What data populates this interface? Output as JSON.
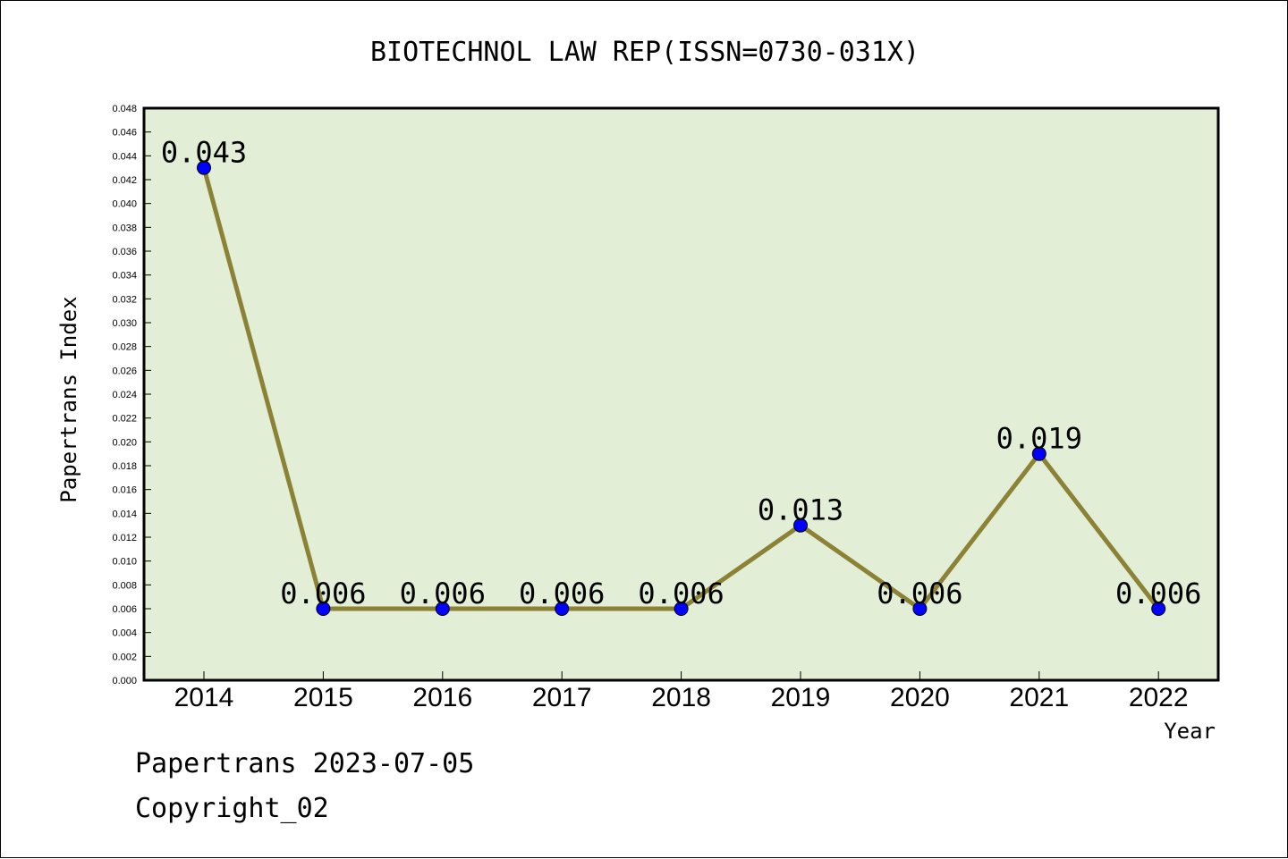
{
  "chart_data": {
    "type": "line",
    "title": "BIOTECHNOL LAW REP(ISSN=0730-031X)",
    "xlabel": "Year",
    "ylabel": "Papertrans Index",
    "x": [
      "2014",
      "2015",
      "2016",
      "2017",
      "2018",
      "2019",
      "2020",
      "2021",
      "2022"
    ],
    "y": [
      0.043,
      0.006,
      0.006,
      0.006,
      0.006,
      0.013,
      0.006,
      0.019,
      0.006
    ],
    "data_labels": [
      "0.043",
      "0.006",
      "0.006",
      "0.006",
      "0.006",
      "0.013",
      "0.006",
      "0.019",
      "0.006"
    ],
    "ylim": [
      0,
      0.048
    ],
    "ytick_step": 0.002,
    "grid": false,
    "plot_background": "#e2efd6",
    "line_color": "#8b8236",
    "marker_color": "#0000ff"
  },
  "footer": {
    "line1": "Papertrans 2023-07-05",
    "line2": "Copyright_02"
  }
}
